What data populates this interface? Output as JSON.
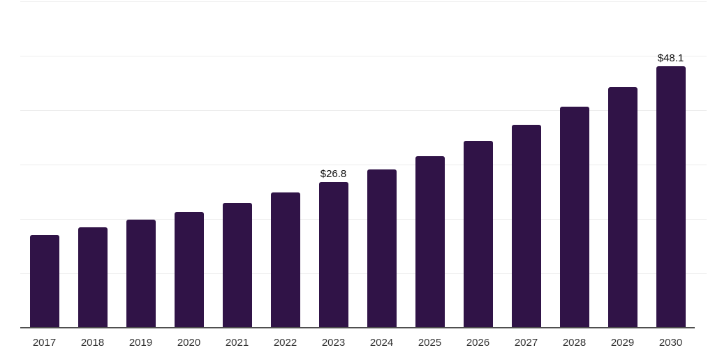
{
  "chart_data": {
    "type": "bar",
    "title": "",
    "xlabel": "",
    "ylabel": "",
    "categories": [
      "2017",
      "2018",
      "2019",
      "2020",
      "2021",
      "2022",
      "2023",
      "2024",
      "2025",
      "2026",
      "2027",
      "2028",
      "2029",
      "2030"
    ],
    "values": [
      17.1,
      18.5,
      19.9,
      21.3,
      22.9,
      24.9,
      26.8,
      29.1,
      31.6,
      34.3,
      37.3,
      40.7,
      44.2,
      48.1
    ],
    "data_labels": [
      {
        "category": "2023",
        "text": "$26.8"
      },
      {
        "category": "2030",
        "text": "$48.1"
      }
    ],
    "ylim": [
      0,
      60
    ],
    "gridline_step": 10,
    "grid": true,
    "legend": "none",
    "y_axis_tick_labels_visible": false,
    "colors": {
      "bar": "#301347",
      "gridline": "#ededed",
      "axis": "#4f4f4f",
      "data_label_text": "#111111",
      "tick_label_text": "#333333",
      "background": "#ffffff"
    }
  }
}
